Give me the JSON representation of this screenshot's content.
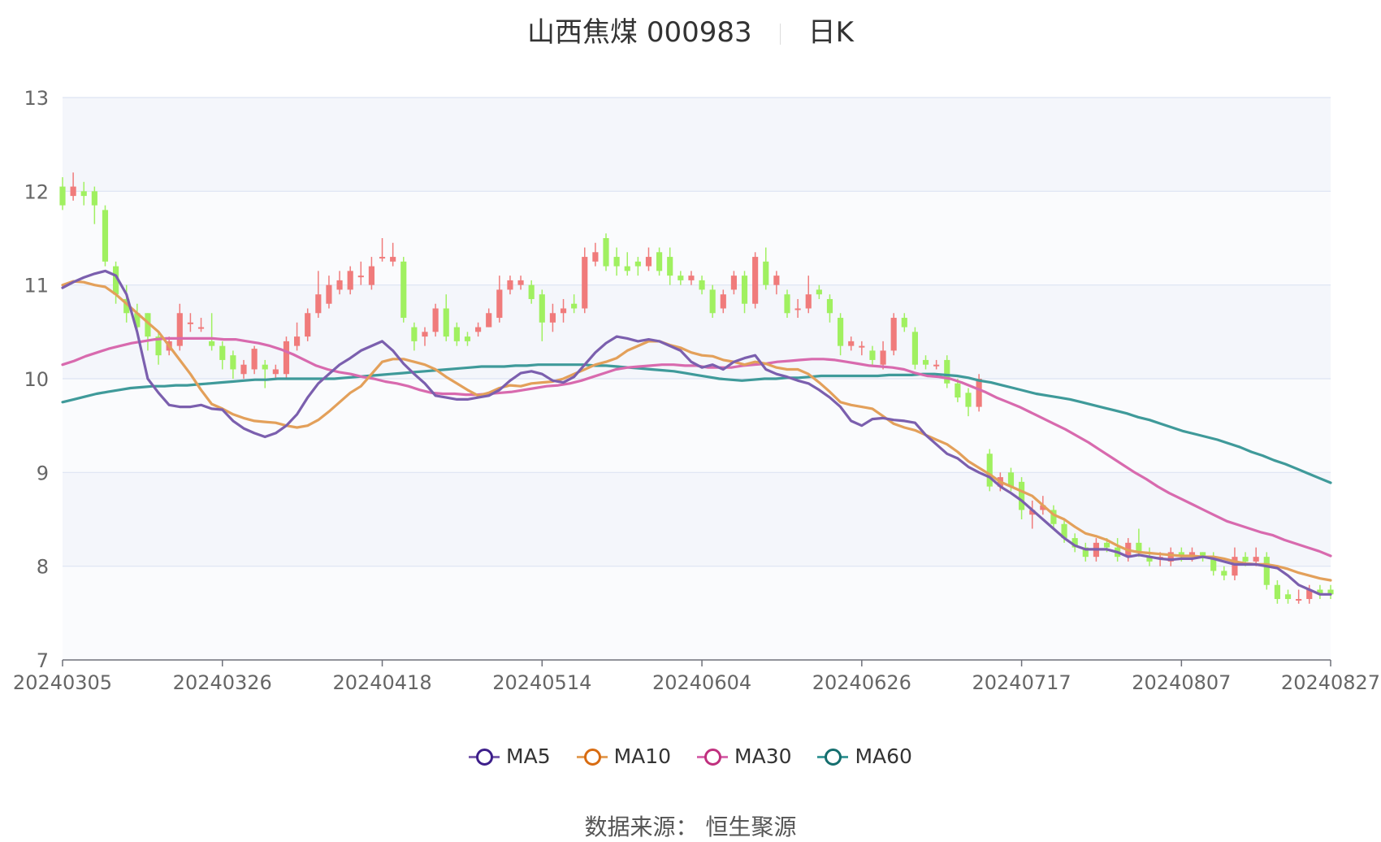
{
  "title": {
    "name": "山西焦煤 000983",
    "period": "日K"
  },
  "source_text": "数据来源： 恒生聚源",
  "colors": {
    "up": "#f07b7b",
    "down": "#a0f060",
    "ma5": "#7b5fae",
    "ma10": "#e3a05a",
    "ma30": "#d86aae",
    "ma60": "#3f9a9a",
    "grid": "#dde3f3",
    "band": "#f4f6fb"
  },
  "legend": [
    {
      "name": "MA5",
      "color": "#7b5fae",
      "ring": "#3d1f8a"
    },
    {
      "name": "MA10",
      "color": "#e3a05a",
      "ring": "#d86c12"
    },
    {
      "name": "MA30",
      "color": "#d86aae",
      "ring": "#c0307e"
    },
    {
      "name": "MA60",
      "color": "#3f9a9a",
      "ring": "#156e6e"
    }
  ],
  "chart_data": {
    "type": "candlestick",
    "title": "山西焦煤 000983",
    "ylim": [
      7,
      13
    ],
    "yticks": [
      7,
      8,
      9,
      10,
      11,
      12,
      13
    ],
    "xtick_labels": [
      "20240305",
      "20240326",
      "20240418",
      "20240514",
      "20240604",
      "20240626",
      "20240717",
      "20240807",
      "20240827"
    ],
    "xtick_index": [
      0,
      15,
      30,
      45,
      60,
      75,
      90,
      105,
      119
    ],
    "candles": [
      [
        12.05,
        11.85,
        12.15,
        11.8
      ],
      [
        11.95,
        12.05,
        12.2,
        11.9
      ],
      [
        12.0,
        11.95,
        12.1,
        11.85
      ],
      [
        12.0,
        11.85,
        12.05,
        11.65
      ],
      [
        11.8,
        11.25,
        11.85,
        11.2
      ],
      [
        11.2,
        10.9,
        11.25,
        10.8
      ],
      [
        10.85,
        10.7,
        11.0,
        10.6
      ],
      [
        10.7,
        10.55,
        10.8,
        10.5
      ],
      [
        10.7,
        10.45,
        10.7,
        10.3
      ],
      [
        10.45,
        10.25,
        10.5,
        10.15
      ],
      [
        10.3,
        10.4,
        10.45,
        10.25
      ],
      [
        10.35,
        10.7,
        10.8,
        10.3
      ],
      [
        10.6,
        10.6,
        10.7,
        10.5
      ],
      [
        10.55,
        10.55,
        10.65,
        10.5
      ],
      [
        10.4,
        10.35,
        10.7,
        10.3
      ],
      [
        10.35,
        10.2,
        10.4,
        10.1
      ],
      [
        10.25,
        10.1,
        10.3,
        10.0
      ],
      [
        10.05,
        10.15,
        10.2,
        10.0
      ],
      [
        10.1,
        10.32,
        10.35,
        10.05
      ],
      [
        10.15,
        10.1,
        10.2,
        9.9
      ],
      [
        10.05,
        10.1,
        10.15,
        10.0
      ],
      [
        10.05,
        10.4,
        10.45,
        10.0
      ],
      [
        10.35,
        10.45,
        10.6,
        10.3
      ],
      [
        10.45,
        10.7,
        10.75,
        10.4
      ],
      [
        10.7,
        10.9,
        11.15,
        10.65
      ],
      [
        10.8,
        11.0,
        11.1,
        10.75
      ],
      [
        10.95,
        11.05,
        11.15,
        10.9
      ],
      [
        10.95,
        11.15,
        11.2,
        10.9
      ],
      [
        11.1,
        11.1,
        11.25,
        11.0
      ],
      [
        11.0,
        11.2,
        11.3,
        10.95
      ],
      [
        11.3,
        11.3,
        11.5,
        11.25
      ],
      [
        11.25,
        11.3,
        11.45,
        11.2
      ],
      [
        11.25,
        10.65,
        11.3,
        10.6
      ],
      [
        10.55,
        10.4,
        10.6,
        10.3
      ],
      [
        10.45,
        10.5,
        10.55,
        10.35
      ],
      [
        10.5,
        10.75,
        10.8,
        10.45
      ],
      [
        10.75,
        10.45,
        10.9,
        10.4
      ],
      [
        10.55,
        10.4,
        10.6,
        10.35
      ],
      [
        10.45,
        10.4,
        10.5,
        10.35
      ],
      [
        10.5,
        10.55,
        10.6,
        10.45
      ],
      [
        10.55,
        10.7,
        10.75,
        10.55
      ],
      [
        10.65,
        10.95,
        11.1,
        10.6
      ],
      [
        10.95,
        11.05,
        11.1,
        10.9
      ],
      [
        11.0,
        11.05,
        11.1,
        10.95
      ],
      [
        11.0,
        10.85,
        11.05,
        10.8
      ],
      [
        10.9,
        10.6,
        10.95,
        10.4
      ],
      [
        10.6,
        10.7,
        10.8,
        10.5
      ],
      [
        10.7,
        10.75,
        10.85,
        10.6
      ],
      [
        10.8,
        10.75,
        10.9,
        10.7
      ],
      [
        10.75,
        11.3,
        11.4,
        10.7
      ],
      [
        11.25,
        11.35,
        11.45,
        11.2
      ],
      [
        11.5,
        11.2,
        11.55,
        11.15
      ],
      [
        11.3,
        11.2,
        11.4,
        11.1
      ],
      [
        11.2,
        11.15,
        11.35,
        11.1
      ],
      [
        11.25,
        11.2,
        11.3,
        11.1
      ],
      [
        11.2,
        11.3,
        11.4,
        11.15
      ],
      [
        11.35,
        11.15,
        11.4,
        11.1
      ],
      [
        11.3,
        11.1,
        11.4,
        11.0
      ],
      [
        11.1,
        11.05,
        11.15,
        11.0
      ],
      [
        11.05,
        11.1,
        11.15,
        11.0
      ],
      [
        11.05,
        10.95,
        11.1,
        10.9
      ],
      [
        10.95,
        10.7,
        11.0,
        10.65
      ],
      [
        10.75,
        10.9,
        10.95,
        10.7
      ],
      [
        10.95,
        11.1,
        11.15,
        10.9
      ],
      [
        11.1,
        10.8,
        11.15,
        10.7
      ],
      [
        10.8,
        11.3,
        11.35,
        10.75
      ],
      [
        11.25,
        11.0,
        11.4,
        10.95
      ],
      [
        11.0,
        11.1,
        11.15,
        10.9
      ],
      [
        10.9,
        10.7,
        10.95,
        10.65
      ],
      [
        10.75,
        10.75,
        10.85,
        10.65
      ],
      [
        10.75,
        10.9,
        11.1,
        10.7
      ],
      [
        10.95,
        10.9,
        11.0,
        10.85
      ],
      [
        10.85,
        10.7,
        10.9,
        10.6
      ],
      [
        10.65,
        10.35,
        10.7,
        10.25
      ],
      [
        10.35,
        10.4,
        10.45,
        10.3
      ],
      [
        10.35,
        10.35,
        10.4,
        10.25
      ],
      [
        10.3,
        10.2,
        10.35,
        10.15
      ],
      [
        10.15,
        10.3,
        10.4,
        10.1
      ],
      [
        10.3,
        10.65,
        10.7,
        10.25
      ],
      [
        10.65,
        10.55,
        10.7,
        10.5
      ],
      [
        10.5,
        10.15,
        10.55,
        10.1
      ],
      [
        10.2,
        10.15,
        10.25,
        10.1
      ],
      [
        10.15,
        10.15,
        10.2,
        10.1
      ],
      [
        10.2,
        9.95,
        10.25,
        9.9
      ],
      [
        9.95,
        9.8,
        10.0,
        9.75
      ],
      [
        9.85,
        9.7,
        9.9,
        9.6
      ],
      [
        9.7,
        10.0,
        10.05,
        9.65
      ],
      [
        9.2,
        8.85,
        9.25,
        8.8
      ],
      [
        8.85,
        8.95,
        9.0,
        8.8
      ],
      [
        9.0,
        8.85,
        9.05,
        8.8
      ],
      [
        8.9,
        8.6,
        8.95,
        8.5
      ],
      [
        8.55,
        8.6,
        8.7,
        8.4
      ],
      [
        8.6,
        8.65,
        8.75,
        8.55
      ],
      [
        8.6,
        8.45,
        8.65,
        8.4
      ],
      [
        8.45,
        8.3,
        8.5,
        8.25
      ],
      [
        8.3,
        8.2,
        8.35,
        8.15
      ],
      [
        8.2,
        8.1,
        8.25,
        8.05
      ],
      [
        8.1,
        8.25,
        8.3,
        8.05
      ],
      [
        8.25,
        8.2,
        8.3,
        8.15
      ],
      [
        8.2,
        8.1,
        8.3,
        8.05
      ],
      [
        8.1,
        8.25,
        8.3,
        8.05
      ],
      [
        8.25,
        8.15,
        8.4,
        8.1
      ],
      [
        8.1,
        8.05,
        8.2,
        8.0
      ],
      [
        8.1,
        8.1,
        8.15,
        8.0
      ],
      [
        8.05,
        8.15,
        8.2,
        8.0
      ],
      [
        8.15,
        8.1,
        8.2,
        8.05
      ],
      [
        8.1,
        8.15,
        8.2,
        8.05
      ],
      [
        8.15,
        8.1,
        8.15,
        8.05
      ],
      [
        8.1,
        7.95,
        8.15,
        7.9
      ],
      [
        7.95,
        7.9,
        8.0,
        7.85
      ],
      [
        7.9,
        8.1,
        8.2,
        7.85
      ],
      [
        8.1,
        8.05,
        8.15,
        8.0
      ],
      [
        8.05,
        8.1,
        8.2,
        8.0
      ],
      [
        8.1,
        7.8,
        8.15,
        7.75
      ],
      [
        7.8,
        7.65,
        7.85,
        7.6
      ],
      [
        7.7,
        7.65,
        7.75,
        7.6
      ],
      [
        7.65,
        7.65,
        7.75,
        7.6
      ],
      [
        7.65,
        7.75,
        7.8,
        7.6
      ],
      [
        7.75,
        7.7,
        7.8,
        7.65
      ],
      [
        7.75,
        7.7,
        7.8,
        7.65
      ]
    ],
    "ma5": [
      10.97,
      11.03,
      11.08,
      11.12,
      11.15,
      11.1,
      10.9,
      10.5,
      10.0,
      9.85,
      9.72,
      9.7,
      9.7,
      9.72,
      9.68,
      9.67,
      9.55,
      9.47,
      9.42,
      9.38,
      9.42,
      9.5,
      9.62,
      9.8,
      9.95,
      10.05,
      10.15,
      10.22,
      10.3,
      10.35,
      10.4,
      10.3,
      10.16,
      10.05,
      9.95,
      9.82,
      9.8,
      9.78,
      9.78,
      9.8,
      9.82,
      9.88,
      9.98,
      10.06,
      10.08,
      10.05,
      9.98,
      9.96,
      10.02,
      10.15,
      10.28,
      10.38,
      10.45,
      10.43,
      10.4,
      10.42,
      10.4,
      10.35,
      10.3,
      10.18,
      10.12,
      10.15,
      10.1,
      10.18,
      10.22,
      10.25,
      10.1,
      10.05,
      10.02,
      9.98,
      9.95,
      9.88,
      9.8,
      9.7,
      9.55,
      9.5,
      9.57,
      9.58,
      9.56,
      9.55,
      9.53,
      9.4,
      9.3,
      9.2,
      9.15,
      9.06,
      9.0,
      8.95,
      8.85,
      8.78,
      8.7,
      8.6,
      8.5,
      8.4,
      8.3,
      8.22,
      8.18,
      8.18,
      8.18,
      8.15,
      8.1,
      8.12,
      8.1,
      8.08,
      8.07,
      8.08,
      8.08,
      8.1,
      8.08,
      8.05,
      8.02,
      8.02,
      8.02,
      8.0,
      7.98,
      7.9,
      7.8,
      7.75,
      7.7,
      7.7
    ],
    "ma10": [
      11.0,
      11.04,
      11.03,
      11.0,
      10.98,
      10.9,
      10.8,
      10.7,
      10.6,
      10.5,
      10.35,
      10.2,
      10.05,
      9.88,
      9.73,
      9.68,
      9.62,
      9.58,
      9.55,
      9.54,
      9.53,
      9.5,
      9.48,
      9.5,
      9.56,
      9.65,
      9.75,
      9.85,
      9.92,
      10.05,
      10.18,
      10.21,
      10.21,
      10.18,
      10.15,
      10.1,
      10.02,
      9.95,
      9.88,
      9.82,
      9.85,
      9.9,
      9.93,
      9.92,
      9.95,
      9.96,
      9.97,
      10.0,
      10.05,
      10.1,
      10.15,
      10.18,
      10.22,
      10.3,
      10.35,
      10.4,
      10.4,
      10.36,
      10.33,
      10.28,
      10.25,
      10.24,
      10.2,
      10.18,
      10.15,
      10.18,
      10.16,
      10.12,
      10.1,
      10.1,
      10.05,
      9.96,
      9.86,
      9.75,
      9.72,
      9.7,
      9.68,
      9.6,
      9.52,
      9.48,
      9.45,
      9.4,
      9.35,
      9.3,
      9.22,
      9.12,
      9.05,
      8.98,
      8.9,
      8.85,
      8.8,
      8.75,
      8.65,
      8.55,
      8.5,
      8.42,
      8.35,
      8.32,
      8.28,
      8.22,
      8.17,
      8.15,
      8.14,
      8.13,
      8.12,
      8.11,
      8.11,
      8.1,
      8.1,
      8.08,
      8.05,
      8.03,
      8.02,
      8.02,
      8.0,
      7.97,
      7.93,
      7.9,
      7.87,
      7.85
    ],
    "ma30": [
      10.15,
      10.19,
      10.24,
      10.28,
      10.32,
      10.35,
      10.38,
      10.4,
      10.42,
      10.43,
      10.43,
      10.43,
      10.43,
      10.43,
      10.42,
      10.42,
      10.4,
      10.38,
      10.35,
      10.31,
      10.26,
      10.2,
      10.14,
      10.1,
      10.07,
      10.05,
      10.02,
      10.0,
      9.97,
      9.95,
      9.92,
      9.88,
      9.85,
      9.84,
      9.84,
      9.83,
      9.83,
      9.84,
      9.85,
      9.86,
      9.88,
      9.9,
      9.92,
      9.93,
      9.95,
      9.98,
      10.02,
      10.06,
      10.1,
      10.12,
      10.13,
      10.14,
      10.15,
      10.15,
      10.14,
      10.14,
      10.12,
      10.12,
      10.12,
      10.14,
      10.15,
      10.16,
      10.18,
      10.19,
      10.2,
      10.21,
      10.21,
      10.2,
      10.18,
      10.16,
      10.14,
      10.13,
      10.12,
      10.1,
      10.06,
      10.03,
      10.02,
      10.0,
      9.96,
      9.91,
      9.86,
      9.8,
      9.75,
      9.7,
      9.64,
      9.58,
      9.52,
      9.46,
      9.39,
      9.32,
      9.24,
      9.16,
      9.08,
      9.0,
      8.93,
      8.85,
      8.78,
      8.72,
      8.66,
      8.6,
      8.54,
      8.48,
      8.44,
      8.4,
      8.36,
      8.33,
      8.28,
      8.24,
      8.2,
      8.16,
      8.11
    ],
    "ma60": [
      9.75,
      9.78,
      9.81,
      9.84,
      9.86,
      9.88,
      9.9,
      9.91,
      9.92,
      9.92,
      9.93,
      9.93,
      9.94,
      9.95,
      9.96,
      9.97,
      9.98,
      9.99,
      9.99,
      10.0,
      10.0,
      10.0,
      10.0,
      10.0,
      10.0,
      10.01,
      10.02,
      10.03,
      10.04,
      10.05,
      10.06,
      10.07,
      10.08,
      10.09,
      10.1,
      10.11,
      10.12,
      10.13,
      10.13,
      10.13,
      10.14,
      10.14,
      10.15,
      10.15,
      10.15,
      10.15,
      10.15,
      10.14,
      10.14,
      10.13,
      10.12,
      10.11,
      10.1,
      10.09,
      10.08,
      10.06,
      10.04,
      10.02,
      10.0,
      9.99,
      9.98,
      9.99,
      10.0,
      10.0,
      10.01,
      10.01,
      10.02,
      10.03,
      10.03,
      10.03,
      10.03,
      10.03,
      10.03,
      10.04,
      10.04,
      10.04,
      10.05,
      10.05,
      10.04,
      10.03,
      10.01,
      9.98,
      9.96,
      9.93,
      9.9,
      9.87,
      9.84,
      9.82,
      9.8,
      9.78,
      9.75,
      9.72,
      9.69,
      9.66,
      9.63,
      9.59,
      9.56,
      9.52,
      9.48,
      9.44,
      9.41,
      9.38,
      9.35,
      9.31,
      9.27,
      9.22,
      9.18,
      9.13,
      9.09,
      9.04,
      8.99,
      8.94,
      8.89
    ]
  }
}
